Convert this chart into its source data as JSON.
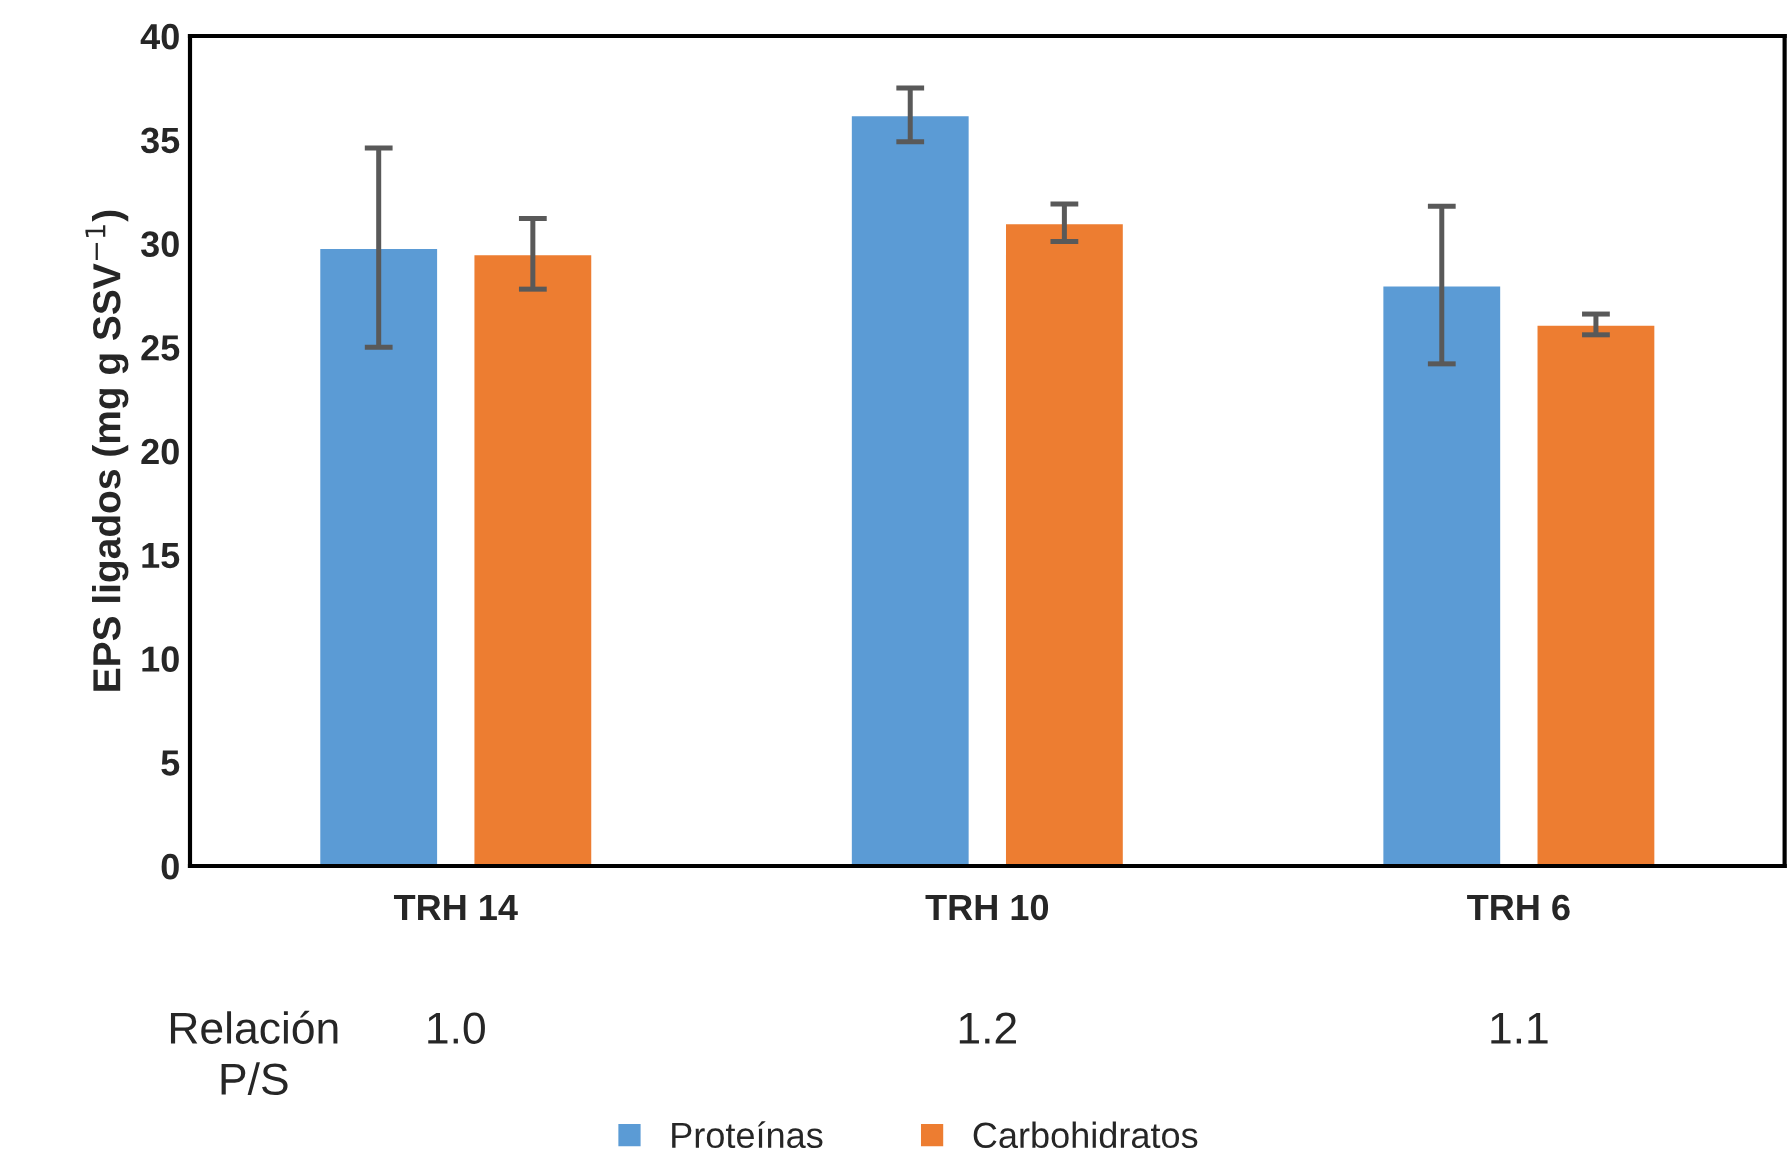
{
  "chart_data": {
    "type": "bar",
    "ylabel": "EPS ligados (mg g SSV$^{−1}$)",
    "categories": [
      "TRH 14",
      "TRH 10",
      "TRH 6"
    ],
    "series": [
      {
        "name": "Proteínas",
        "color": "#5b9bd5",
        "values": [
          29.8,
          36.2,
          28.0
        ],
        "errors": [
          4.8,
          1.3,
          3.8
        ]
      },
      {
        "name": "Carbohidratos",
        "color": "#ed7d31",
        "values": [
          29.5,
          31.0,
          26.1
        ],
        "errors": [
          1.7,
          0.9,
          0.5
        ]
      }
    ],
    "ylim": [
      0,
      40
    ],
    "yticks": [
      0,
      5,
      10,
      15,
      20,
      25,
      30,
      35,
      40
    ],
    "annotations": [
      "Relación\nP/S",
      "1.0",
      "1.2",
      "1.1"
    ],
    "grid": false,
    "legend": "bottom"
  }
}
